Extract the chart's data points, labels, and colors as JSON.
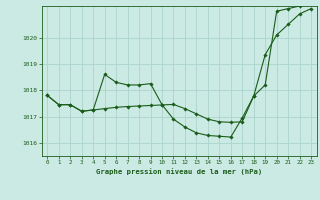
{
  "background_color": "#cceae4",
  "grid_color": "#aad4cc",
  "line_color": "#1a5c1a",
  "title": "Graphe pression niveau de la mer (hPa)",
  "xlim": [
    -0.5,
    23.5
  ],
  "ylim": [
    1015.5,
    1021.2
  ],
  "yticks": [
    1016,
    1017,
    1018,
    1019,
    1020
  ],
  "xticks": [
    0,
    1,
    2,
    3,
    4,
    5,
    6,
    7,
    8,
    9,
    10,
    11,
    12,
    13,
    14,
    15,
    16,
    17,
    18,
    19,
    20,
    21,
    22,
    23
  ],
  "series1_x": [
    0,
    1,
    2,
    3,
    4,
    5,
    6,
    7,
    8,
    9,
    10,
    11,
    12,
    13,
    14,
    15,
    16,
    17,
    18,
    19,
    20,
    21,
    22,
    23
  ],
  "series1_y": [
    1017.8,
    1017.45,
    1017.45,
    1017.2,
    1017.25,
    1017.3,
    1017.35,
    1017.38,
    1017.4,
    1017.42,
    1017.44,
    1017.46,
    1017.3,
    1017.1,
    1016.9,
    1016.8,
    1016.78,
    1016.8,
    1017.78,
    1019.35,
    1020.1,
    1020.5,
    1020.9,
    1021.1
  ],
  "series2_x": [
    0,
    1,
    2,
    3,
    4,
    5,
    6,
    7,
    8,
    9,
    10,
    11,
    12,
    13,
    14,
    15,
    16,
    17,
    18,
    19,
    20,
    21,
    22,
    23
  ],
  "series2_y": [
    1017.8,
    1017.45,
    1017.45,
    1017.2,
    1017.25,
    1018.6,
    1018.3,
    1018.2,
    1018.2,
    1018.25,
    1017.45,
    1016.9,
    1016.6,
    1016.38,
    1016.28,
    1016.25,
    1016.22,
    1016.95,
    1017.78,
    1018.2,
    1021.0,
    1021.1,
    1021.2,
    1021.3
  ]
}
